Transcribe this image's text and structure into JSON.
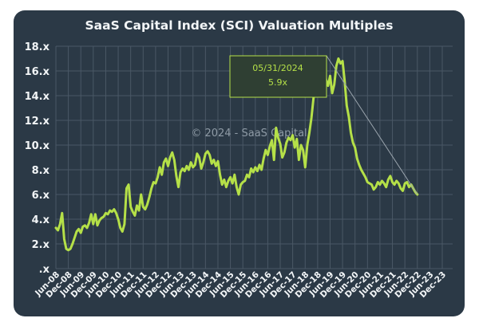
{
  "chart_data": {
    "type": "line",
    "title": "SaaS Capital Index (SCI) Valuation Multiples",
    "watermark": "© 2024 - SaaS Capital",
    "annotation": {
      "date": "05/31/2024",
      "value": "5.9x",
      "x": "2024-05"
    },
    "ylim": [
      0,
      18
    ],
    "y_ticks": [
      {
        "value": 0,
        "label": ".x"
      },
      {
        "value": 2,
        "label": "2.x"
      },
      {
        "value": 4,
        "label": "4.x"
      },
      {
        "value": 6,
        "label": "6.x"
      },
      {
        "value": 8,
        "label": "8.x"
      },
      {
        "value": 10,
        "label": "10.x"
      },
      {
        "value": 12,
        "label": "12.x"
      },
      {
        "value": 14,
        "label": "14.x"
      },
      {
        "value": 16,
        "label": "16.x"
      },
      {
        "value": 18,
        "label": "18.x"
      }
    ],
    "x_range": [
      "2008-06",
      "2024-05"
    ],
    "x_ticks": [
      "Jun-08",
      "Dec-08",
      "Jun-09",
      "Dec-09",
      "Jun-10",
      "Dec-10",
      "Jun-11",
      "Dec-11",
      "Jun-12",
      "Dec-12",
      "Jun-13",
      "Dec-13",
      "Jun-14",
      "Dec-14",
      "Jun-15",
      "Dec-15",
      "Jun-16",
      "Dec-16",
      "Jun-17",
      "Dec-17",
      "Jun-18",
      "Dec-18",
      "Jun-19",
      "Dec-19",
      "Jun-20",
      "Dec-20",
      "Jun-21",
      "Dec-21",
      "Jun-22",
      "Dec-22",
      "Jun-23",
      "Dec-23"
    ],
    "grid": true,
    "colors": {
      "line": "#b5e048",
      "background": "#2b3946",
      "grid": "#4a5866",
      "text": "#f2f5f7"
    },
    "series": [
      {
        "points": [
          [
            "2008-06",
            3.3
          ],
          [
            "2008-07",
            3.1
          ],
          [
            "2008-08",
            3.6
          ],
          [
            "2008-09",
            4.5
          ],
          [
            "2008-10",
            2.4
          ],
          [
            "2008-11",
            1.6
          ],
          [
            "2008-12",
            1.5
          ],
          [
            "2009-01",
            1.6
          ],
          [
            "2009-02",
            2.0
          ],
          [
            "2009-03",
            2.5
          ],
          [
            "2009-04",
            3.0
          ],
          [
            "2009-05",
            3.2
          ],
          [
            "2009-06",
            2.9
          ],
          [
            "2009-07",
            3.4
          ],
          [
            "2009-08",
            3.5
          ],
          [
            "2009-09",
            3.3
          ],
          [
            "2009-10",
            3.7
          ],
          [
            "2009-11",
            4.4
          ],
          [
            "2009-12",
            3.6
          ],
          [
            "2010-01",
            4.4
          ],
          [
            "2010-02",
            3.5
          ],
          [
            "2010-03",
            3.9
          ],
          [
            "2010-04",
            4.1
          ],
          [
            "2010-05",
            4.2
          ],
          [
            "2010-06",
            4.5
          ],
          [
            "2010-07",
            4.4
          ],
          [
            "2010-08",
            4.7
          ],
          [
            "2010-09",
            4.6
          ],
          [
            "2010-10",
            4.8
          ],
          [
            "2010-11",
            4.5
          ],
          [
            "2010-12",
            4.0
          ],
          [
            "2011-01",
            3.3
          ],
          [
            "2011-02",
            3.0
          ],
          [
            "2011-03",
            3.6
          ],
          [
            "2011-04",
            6.5
          ],
          [
            "2011-05",
            6.8
          ],
          [
            "2011-06",
            5.0
          ],
          [
            "2011-07",
            4.6
          ],
          [
            "2011-08",
            4.3
          ],
          [
            "2011-09",
            5.1
          ],
          [
            "2011-10",
            4.7
          ],
          [
            "2011-11",
            6.0
          ],
          [
            "2011-12",
            5.0
          ],
          [
            "2012-01",
            4.8
          ],
          [
            "2012-02",
            5.2
          ],
          [
            "2012-03",
            5.8
          ],
          [
            "2012-04",
            6.5
          ],
          [
            "2012-05",
            7.0
          ],
          [
            "2012-06",
            6.9
          ],
          [
            "2012-07",
            7.4
          ],
          [
            "2012-08",
            8.2
          ],
          [
            "2012-09",
            7.6
          ],
          [
            "2012-10",
            8.6
          ],
          [
            "2012-11",
            8.9
          ],
          [
            "2012-12",
            8.3
          ],
          [
            "2013-01",
            9.0
          ],
          [
            "2013-02",
            9.4
          ],
          [
            "2013-03",
            8.8
          ],
          [
            "2013-04",
            7.5
          ],
          [
            "2013-05",
            6.6
          ],
          [
            "2013-06",
            7.8
          ],
          [
            "2013-07",
            8.1
          ],
          [
            "2013-08",
            7.9
          ],
          [
            "2013-09",
            8.3
          ],
          [
            "2013-10",
            8.0
          ],
          [
            "2013-11",
            8.6
          ],
          [
            "2013-12",
            8.2
          ],
          [
            "2014-01",
            8.4
          ],
          [
            "2014-02",
            9.3
          ],
          [
            "2014-03",
            9.0
          ],
          [
            "2014-04",
            8.1
          ],
          [
            "2014-05",
            8.6
          ],
          [
            "2014-06",
            9.3
          ],
          [
            "2014-07",
            9.5
          ],
          [
            "2014-08",
            9.2
          ],
          [
            "2014-09",
            8.5
          ],
          [
            "2014-10",
            8.8
          ],
          [
            "2014-11",
            8.3
          ],
          [
            "2014-12",
            8.7
          ],
          [
            "2015-01",
            7.6
          ],
          [
            "2015-02",
            6.8
          ],
          [
            "2015-03",
            7.2
          ],
          [
            "2015-04",
            6.6
          ],
          [
            "2015-05",
            7.1
          ],
          [
            "2015-06",
            7.4
          ],
          [
            "2015-07",
            6.9
          ],
          [
            "2015-08",
            7.6
          ],
          [
            "2015-09",
            6.6
          ],
          [
            "2015-10",
            6.0
          ],
          [
            "2015-11",
            6.8
          ],
          [
            "2015-12",
            7.0
          ],
          [
            "2016-01",
            7.1
          ],
          [
            "2016-02",
            7.6
          ],
          [
            "2016-03",
            7.4
          ],
          [
            "2016-04",
            8.1
          ],
          [
            "2016-05",
            7.8
          ],
          [
            "2016-06",
            8.2
          ],
          [
            "2016-07",
            7.9
          ],
          [
            "2016-08",
            8.4
          ],
          [
            "2016-09",
            8.0
          ],
          [
            "2016-10",
            8.9
          ],
          [
            "2016-11",
            9.6
          ],
          [
            "2016-12",
            9.2
          ],
          [
            "2017-01",
            9.9
          ],
          [
            "2017-02",
            10.4
          ],
          [
            "2017-03",
            8.8
          ],
          [
            "2017-04",
            11.4
          ],
          [
            "2017-05",
            10.6
          ],
          [
            "2017-06",
            10.1
          ],
          [
            "2017-07",
            9.0
          ],
          [
            "2017-08",
            9.4
          ],
          [
            "2017-09",
            10.2
          ],
          [
            "2017-10",
            10.6
          ],
          [
            "2017-11",
            10.4
          ],
          [
            "2017-12",
            10.8
          ],
          [
            "2018-01",
            9.8
          ],
          [
            "2018-02",
            10.5
          ],
          [
            "2018-03",
            8.8
          ],
          [
            "2018-04",
            10.0
          ],
          [
            "2018-05",
            9.6
          ],
          [
            "2018-06",
            8.2
          ],
          [
            "2018-07",
            10.0
          ],
          [
            "2018-08",
            11.0
          ],
          [
            "2018-09",
            12.2
          ],
          [
            "2018-10",
            13.8
          ],
          [
            "2018-11",
            14.7
          ],
          [
            "2018-12",
            14.9
          ],
          [
            "2019-01",
            15.8
          ],
          [
            "2019-02",
            17.0
          ],
          [
            "2019-03",
            16.5
          ],
          [
            "2019-04",
            15.3
          ],
          [
            "2019-05",
            14.8
          ],
          [
            "2019-06",
            15.6
          ],
          [
            "2019-07",
            14.2
          ],
          [
            "2019-08",
            14.9
          ],
          [
            "2019-09",
            16.4
          ],
          [
            "2019-10",
            17.0
          ],
          [
            "2019-11",
            16.6
          ],
          [
            "2019-12",
            16.8
          ],
          [
            "2020-01",
            15.2
          ],
          [
            "2020-02",
            13.2
          ],
          [
            "2020-03",
            12.3
          ],
          [
            "2020-04",
            11.0
          ],
          [
            "2020-05",
            10.2
          ],
          [
            "2020-06",
            9.8
          ],
          [
            "2020-07",
            8.9
          ],
          [
            "2020-08",
            8.4
          ],
          [
            "2020-09",
            8.0
          ],
          [
            "2020-10",
            7.7
          ],
          [
            "2020-11",
            7.4
          ],
          [
            "2020-12",
            7.0
          ],
          [
            "2021-01",
            6.9
          ],
          [
            "2021-02",
            6.8
          ],
          [
            "2021-03",
            6.4
          ],
          [
            "2021-04",
            6.6
          ],
          [
            "2021-05",
            7.0
          ],
          [
            "2021-06",
            6.8
          ],
          [
            "2021-07",
            7.1
          ],
          [
            "2021-08",
            6.9
          ],
          [
            "2021-09",
            6.6
          ],
          [
            "2021-10",
            7.2
          ],
          [
            "2021-11",
            7.5
          ],
          [
            "2021-12",
            7.0
          ],
          [
            "2022-01",
            6.8
          ],
          [
            "2022-02",
            7.1
          ],
          [
            "2022-03",
            6.9
          ],
          [
            "2022-04",
            6.5
          ],
          [
            "2022-05",
            6.3
          ],
          [
            "2022-06",
            6.9
          ],
          [
            "2022-07",
            7.0
          ],
          [
            "2022-08",
            6.6
          ],
          [
            "2022-09",
            6.8
          ],
          [
            "2022-10",
            6.5
          ],
          [
            "2022-11",
            6.2
          ],
          [
            "2022-12",
            6.0
          ]
        ]
      }
    ]
  }
}
